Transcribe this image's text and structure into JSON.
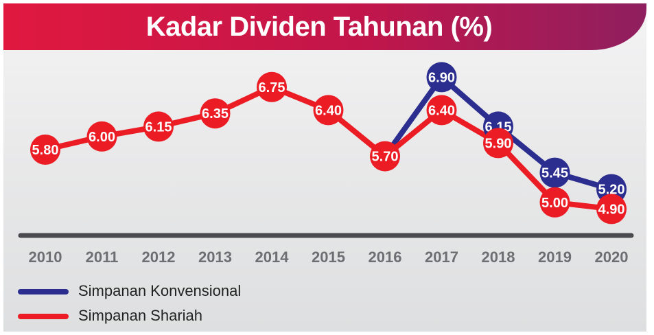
{
  "title": "Kadar Dividen Tahunan (%)",
  "colors": {
    "konvensional": "#2b2e8f",
    "shariah": "#ec1c24",
    "axis": "#4a4a4f",
    "tick_text": "#6d6e71",
    "banner_start": "#e0183f",
    "banner_end": "#8f1f5f"
  },
  "chart_data": {
    "type": "line",
    "title": "Kadar Dividen Tahunan (%)",
    "xlabel": "",
    "ylabel": "",
    "categories": [
      "2010",
      "2011",
      "2012",
      "2013",
      "2014",
      "2015",
      "2016",
      "2017",
      "2018",
      "2019",
      "2020"
    ],
    "series": [
      {
        "name": "Simpanan Konvensional",
        "values": [
          null,
          null,
          null,
          null,
          null,
          null,
          5.7,
          6.9,
          6.15,
          5.45,
          5.2
        ],
        "labels": [
          "",
          "",
          "",
          "",
          "",
          "",
          "",
          "6.90",
          "6.15",
          "5.45",
          "5.20"
        ]
      },
      {
        "name": "Simpanan Shariah",
        "values": [
          5.8,
          6.0,
          6.15,
          6.35,
          6.75,
          6.4,
          5.7,
          6.4,
          5.9,
          5.0,
          4.9
        ],
        "labels": [
          "5.80",
          "6.00",
          "6.15",
          "6.35",
          "6.75",
          "6.40",
          "5.70",
          "6.40",
          "5.90",
          "5.00",
          "4.90"
        ]
      }
    ],
    "legend_position": "bottom-left",
    "grid": false
  }
}
